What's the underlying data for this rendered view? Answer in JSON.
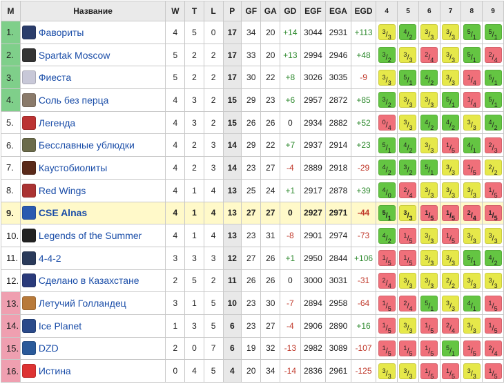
{
  "header": {
    "m": "M",
    "name": "Название",
    "w": "W",
    "t": "T",
    "l": "L",
    "p": "P",
    "gf": "GF",
    "ga": "GA",
    "gd": "GD",
    "egf": "EGF",
    "ega": "EGA",
    "egd": "EGD",
    "rounds": [
      "4",
      "5",
      "6",
      "7",
      "8",
      "9"
    ]
  },
  "colors": {
    "win": "#64c542",
    "draw": "#e6e84a",
    "loss": "#f0707a",
    "promotion": "#7fcf8a",
    "relegation": "#ef9fb0",
    "highlight": "#fff9c9"
  },
  "rows": [
    {
      "pos": "1.",
      "zone": "promo",
      "team": "Фавориты",
      "icon": "favorites-logo-icon",
      "w": "4",
      "t": "5",
      "l": "0",
      "p": "17",
      "gf": "34",
      "ga": "20",
      "gd": "+14",
      "egf": "3044",
      "ega": "2931",
      "egd": "+113",
      "res": [
        [
          "3",
          "3",
          "y"
        ],
        [
          "4",
          "2",
          "g"
        ],
        [
          "3",
          "3",
          "y"
        ],
        [
          "3",
          "3",
          "y"
        ],
        [
          "5",
          "1",
          "g"
        ],
        [
          "5",
          "1",
          "g"
        ]
      ]
    },
    {
      "pos": "2.",
      "zone": "promo",
      "team": "Spartak Moscow",
      "icon": "spartak-moscow-logo-icon",
      "w": "5",
      "t": "2",
      "l": "2",
      "p": "17",
      "gf": "33",
      "ga": "20",
      "gd": "+13",
      "egf": "2994",
      "ega": "2946",
      "egd": "+48",
      "res": [
        [
          "3",
          "2",
          "g"
        ],
        [
          "3",
          "3",
          "y"
        ],
        [
          "2",
          "4",
          "r"
        ],
        [
          "3",
          "3",
          "y"
        ],
        [
          "5",
          "1",
          "g"
        ],
        [
          "2",
          "4",
          "r"
        ]
      ]
    },
    {
      "pos": "3.",
      "zone": "promo",
      "team": "Фиеста",
      "icon": "fiesta-logo-icon",
      "w": "5",
      "t": "2",
      "l": "2",
      "p": "17",
      "gf": "30",
      "ga": "22",
      "gd": "+8",
      "egf": "3026",
      "ega": "3035",
      "egd": "-9",
      "res": [
        [
          "3",
          "3",
          "y"
        ],
        [
          "5",
          "1",
          "g"
        ],
        [
          "4",
          "2",
          "g"
        ],
        [
          "3",
          "3",
          "y"
        ],
        [
          "1",
          "4",
          "r"
        ],
        [
          "5",
          "1",
          "g"
        ]
      ]
    },
    {
      "pos": "4.",
      "zone": "promo",
      "team": "Соль без перца",
      "icon": "salt-no-pepper-logo-icon",
      "w": "4",
      "t": "3",
      "l": "2",
      "p": "15",
      "gf": "29",
      "ga": "23",
      "gd": "+6",
      "egf": "2957",
      "ega": "2872",
      "egd": "+85",
      "res": [
        [
          "3",
          "2",
          "g"
        ],
        [
          "3",
          "3",
          "y"
        ],
        [
          "3",
          "3",
          "y"
        ],
        [
          "5",
          "1",
          "g"
        ],
        [
          "1",
          "4",
          "r"
        ],
        [
          "5",
          "1",
          "g"
        ]
      ]
    },
    {
      "pos": "5.",
      "zone": "",
      "team": "Легенда",
      "icon": "legenda-logo-icon",
      "w": "4",
      "t": "3",
      "l": "2",
      "p": "15",
      "gf": "26",
      "ga": "26",
      "gd": "0",
      "egf": "2934",
      "ega": "2882",
      "egd": "+52",
      "res": [
        [
          "0",
          "4",
          "r"
        ],
        [
          "3",
          "3",
          "y"
        ],
        [
          "4",
          "2",
          "g"
        ],
        [
          "4",
          "2",
          "g"
        ],
        [
          "3",
          "3",
          "y"
        ],
        [
          "4",
          "2",
          "g"
        ]
      ]
    },
    {
      "pos": "6.",
      "zone": "",
      "team": "Бесславные ублюдки",
      "icon": "inglourious-logo-icon",
      "w": "4",
      "t": "2",
      "l": "3",
      "p": "14",
      "gf": "29",
      "ga": "22",
      "gd": "+7",
      "egf": "2937",
      "ega": "2914",
      "egd": "+23",
      "res": [
        [
          "5",
          "1",
          "g"
        ],
        [
          "4",
          "2",
          "g"
        ],
        [
          "3",
          "3",
          "y"
        ],
        [
          "1",
          "5",
          "r"
        ],
        [
          "4",
          "1",
          "g"
        ],
        [
          "2",
          "3",
          "r"
        ]
      ]
    },
    {
      "pos": "7.",
      "zone": "",
      "team": "Каустобиолиты",
      "icon": "kaustobiolity-logo-icon",
      "w": "4",
      "t": "2",
      "l": "3",
      "p": "14",
      "gf": "23",
      "ga": "27",
      "gd": "-4",
      "egf": "2889",
      "ega": "2918",
      "egd": "-29",
      "res": [
        [
          "4",
          "2",
          "g"
        ],
        [
          "3",
          "2",
          "g"
        ],
        [
          "5",
          "1",
          "g"
        ],
        [
          "3",
          "3",
          "y"
        ],
        [
          "1",
          "5",
          "r"
        ],
        [
          "2",
          "2",
          "y"
        ]
      ]
    },
    {
      "pos": "8.",
      "zone": "",
      "team": "Red Wings",
      "icon": "red-wings-logo-icon",
      "w": "4",
      "t": "1",
      "l": "4",
      "p": "13",
      "gf": "25",
      "ga": "24",
      "gd": "+1",
      "egf": "2917",
      "ega": "2878",
      "egd": "+39",
      "res": [
        [
          "4",
          "0",
          "g"
        ],
        [
          "2",
          "4",
          "r"
        ],
        [
          "3",
          "3",
          "y"
        ],
        [
          "3",
          "3",
          "y"
        ],
        [
          "3",
          "3",
          "y"
        ],
        [
          "1",
          "5",
          "r"
        ]
      ]
    },
    {
      "pos": "9.",
      "zone": "hl",
      "team": "CSE Alnas",
      "icon": "cse-alnas-logo-icon",
      "w": "4",
      "t": "1",
      "l": "4",
      "p": "13",
      "gf": "27",
      "ga": "27",
      "gd": "0",
      "egf": "2927",
      "ega": "2971",
      "egd": "-44",
      "res": [
        [
          "5",
          "1",
          "g"
        ],
        [
          "3",
          "3",
          "y"
        ],
        [
          "1",
          "5",
          "r"
        ],
        [
          "1",
          "5",
          "r"
        ],
        [
          "2",
          "4",
          "r"
        ],
        [
          "1",
          "5",
          "r"
        ]
      ]
    },
    {
      "pos": "10.",
      "zone": "",
      "team": "Legends of the Summer",
      "icon": "legends-summer-logo-icon",
      "w": "4",
      "t": "1",
      "l": "4",
      "p": "13",
      "gf": "23",
      "ga": "31",
      "gd": "-8",
      "egf": "2901",
      "ega": "2974",
      "egd": "-73",
      "res": [
        [
          "4",
          "2",
          "g"
        ],
        [
          "1",
          "5",
          "r"
        ],
        [
          "3",
          "3",
          "y"
        ],
        [
          "1",
          "5",
          "r"
        ],
        [
          "3",
          "3",
          "y"
        ],
        [
          "3",
          "3",
          "y"
        ]
      ]
    },
    {
      "pos": "11.",
      "zone": "",
      "team": "4-4-2",
      "icon": "four-four-two-logo-icon",
      "w": "3",
      "t": "3",
      "l": "3",
      "p": "12",
      "gf": "27",
      "ga": "26",
      "gd": "+1",
      "egf": "2950",
      "ega": "2844",
      "egd": "+106",
      "res": [
        [
          "1",
          "5",
          "r"
        ],
        [
          "1",
          "5",
          "r"
        ],
        [
          "3",
          "3",
          "y"
        ],
        [
          "3",
          "3",
          "y"
        ],
        [
          "5",
          "1",
          "g"
        ],
        [
          "4",
          "2",
          "g"
        ]
      ]
    },
    {
      "pos": "12.",
      "zone": "",
      "team": "Сделано в Казахстане",
      "icon": "made-in-kazakhstan-logo-icon",
      "w": "2",
      "t": "5",
      "l": "2",
      "p": "11",
      "gf": "26",
      "ga": "26",
      "gd": "0",
      "egf": "3000",
      "ega": "3031",
      "egd": "-31",
      "res": [
        [
          "2",
          "4",
          "r"
        ],
        [
          "3",
          "3",
          "y"
        ],
        [
          "3",
          "3",
          "y"
        ],
        [
          "2",
          "2",
          "y"
        ],
        [
          "3",
          "3",
          "y"
        ],
        [
          "3",
          "3",
          "y"
        ]
      ]
    },
    {
      "pos": "13.",
      "zone": "releg",
      "team": "Летучий Голландец",
      "icon": "flying-dutchman-logo-icon",
      "w": "3",
      "t": "1",
      "l": "5",
      "p": "10",
      "gf": "23",
      "ga": "30",
      "gd": "-7",
      "egf": "2894",
      "ega": "2958",
      "egd": "-64",
      "res": [
        [
          "1",
          "5",
          "r"
        ],
        [
          "2",
          "4",
          "r"
        ],
        [
          "5",
          "1",
          "g"
        ],
        [
          "3",
          "3",
          "y"
        ],
        [
          "4",
          "1",
          "g"
        ],
        [
          "1",
          "5",
          "r"
        ]
      ]
    },
    {
      "pos": "14.",
      "zone": "releg",
      "team": "Ice Planet",
      "icon": "ice-planet-logo-icon",
      "w": "1",
      "t": "3",
      "l": "5",
      "p": "6",
      "gf": "23",
      "ga": "27",
      "gd": "-4",
      "egf": "2906",
      "ega": "2890",
      "egd": "+16",
      "res": [
        [
          "1",
          "5",
          "r"
        ],
        [
          "3",
          "3",
          "y"
        ],
        [
          "1",
          "5",
          "r"
        ],
        [
          "2",
          "4",
          "r"
        ],
        [
          "3",
          "3",
          "y"
        ],
        [
          "1",
          "5",
          "r"
        ]
      ]
    },
    {
      "pos": "15.",
      "zone": "releg",
      "team": "DZD",
      "icon": "dzd-logo-icon",
      "w": "2",
      "t": "0",
      "l": "7",
      "p": "6",
      "gf": "19",
      "ga": "32",
      "gd": "-13",
      "egf": "2982",
      "ega": "3089",
      "egd": "-107",
      "res": [
        [
          "1",
          "5",
          "r"
        ],
        [
          "1",
          "5",
          "r"
        ],
        [
          "1",
          "5",
          "r"
        ],
        [
          "5",
          "1",
          "g"
        ],
        [
          "1",
          "5",
          "r"
        ],
        [
          "2",
          "4",
          "r"
        ]
      ]
    },
    {
      "pos": "16.",
      "zone": "releg",
      "team": "Истина",
      "icon": "istina-logo-icon",
      "w": "0",
      "t": "4",
      "l": "5",
      "p": "4",
      "gf": "20",
      "ga": "34",
      "gd": "-14",
      "egf": "2836",
      "ega": "2961",
      "egd": "-125",
      "res": [
        [
          "3",
          "3",
          "y"
        ],
        [
          "3",
          "3",
          "y"
        ],
        [
          "1",
          "5",
          "r"
        ],
        [
          "1",
          "5",
          "r"
        ],
        [
          "3",
          "3",
          "y"
        ],
        [
          "1",
          "5",
          "r"
        ]
      ]
    }
  ]
}
